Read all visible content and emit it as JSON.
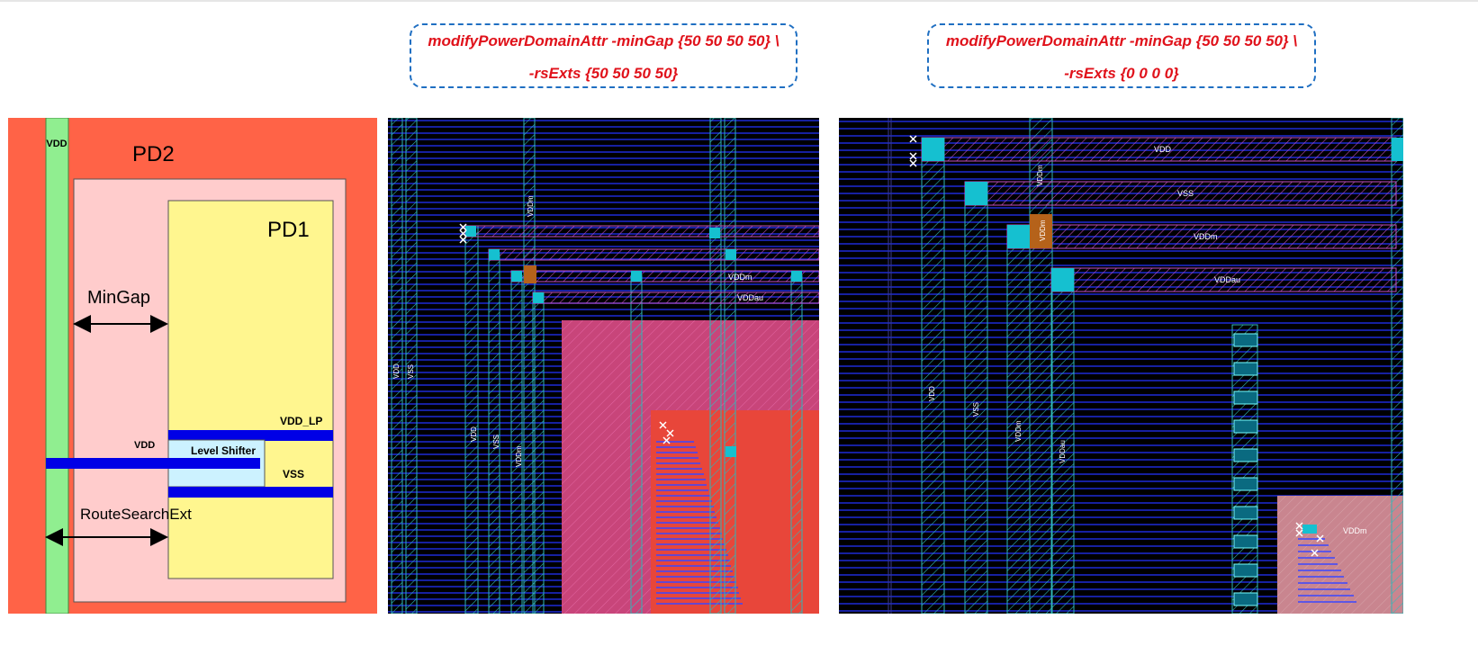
{
  "commands": [
    {
      "line1": "modifyPowerDomainAttr  -minGap {50 50 50 50} \\",
      "line2": "-rsExts {50 50 50 50}"
    },
    {
      "line1": "modifyPowerDomainAttr  -minGap {50 50 50 50} \\",
      "line2": "-rsExts {0 0 0 0}"
    }
  ],
  "schematic": {
    "vdd_strip": "VDD",
    "pd2": "PD2",
    "pd1": "PD1",
    "mingap": "MinGap",
    "vdd_lp": "VDD_LP",
    "vdd_in": "VDD",
    "level_shifter": "Level Shifter",
    "vss": "VSS",
    "route_search_ext": "RouteSearchExt"
  },
  "layout_a": {
    "left_labels": [
      "VDD",
      "VSS"
    ],
    "rail_labels": [
      "VDDm",
      "VDDau"
    ],
    "vertical_labels": [
      "VDD",
      "VSS",
      "VDDm"
    ],
    "top_label": "VDDm"
  },
  "layout_b": {
    "rail_labels": [
      "VDD",
      "VSS",
      "VDDm",
      "VDDau"
    ],
    "vertical_labels": [
      "VDD",
      "VSS",
      "VDDm",
      "VDDau"
    ],
    "top_label": "VDDm",
    "inner_label": "VDDm",
    "bottom_label": "VDDm"
  },
  "colors": {
    "command_text": "#e0121b",
    "command_border": "#1f6fc2",
    "pd2_fill": "#ff6347",
    "pd1_fill": "#fff68f",
    "vdd_strip": "#90ee90",
    "layout_bg": "#000000",
    "metal_blue": "#1e2bd6"
  }
}
